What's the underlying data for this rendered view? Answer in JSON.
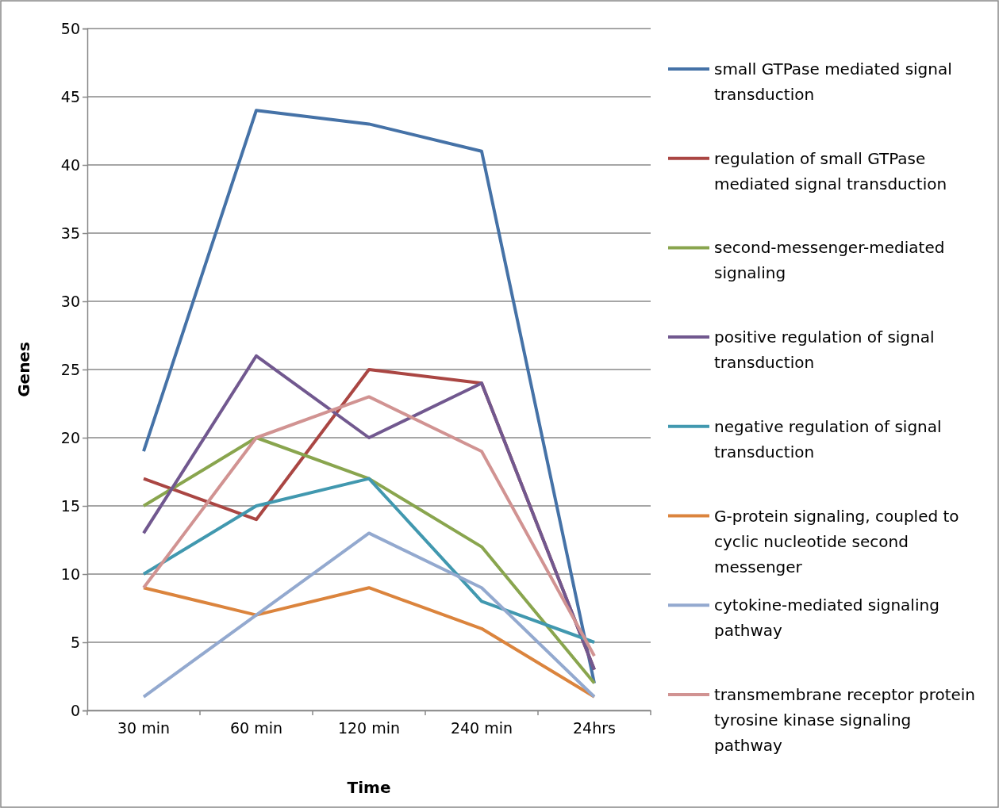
{
  "chart_data": {
    "type": "line",
    "xlabel": "Time",
    "ylabel": "Genes",
    "categories": [
      "30 min",
      "60 min",
      "120 min",
      "240 min",
      "24hrs"
    ],
    "ylim": [
      0,
      50
    ],
    "yticks": [
      0,
      5,
      10,
      15,
      20,
      25,
      30,
      35,
      40,
      45,
      50
    ],
    "grid": "y",
    "legend": "right",
    "marker": "none",
    "series": [
      {
        "name": "small GTPase mediated signal transduction",
        "color": "#4572a7",
        "values": [
          19,
          44,
          43,
          41,
          2
        ]
      },
      {
        "name": "regulation of small GTPase mediated signal transduction",
        "color": "#aa4643",
        "values": [
          17,
          14,
          25,
          24,
          3
        ]
      },
      {
        "name": "second-messenger-mediated signaling",
        "color": "#89a54e",
        "values": [
          15,
          20,
          17,
          12,
          2
        ]
      },
      {
        "name": "positive regulation of signal transduction",
        "color": "#71588f",
        "values": [
          13,
          26,
          20,
          24,
          3
        ]
      },
      {
        "name": "negative regulation of signal transduction",
        "color": "#4198af",
        "values": [
          10,
          15,
          17,
          8,
          5
        ]
      },
      {
        "name": "G-protein signaling, coupled to cyclic nucleotide second messenger",
        "color": "#db843d",
        "values": [
          9,
          7,
          9,
          6,
          1
        ]
      },
      {
        "name": "cytokine-mediated signaling pathway",
        "color": "#93a9cf",
        "values": [
          1,
          7,
          13,
          9,
          1
        ]
      },
      {
        "name": "transmembrane receptor protein tyrosine kinase signaling pathway",
        "color": "#d19392",
        "values": [
          9,
          20,
          23,
          19,
          4
        ]
      }
    ]
  }
}
